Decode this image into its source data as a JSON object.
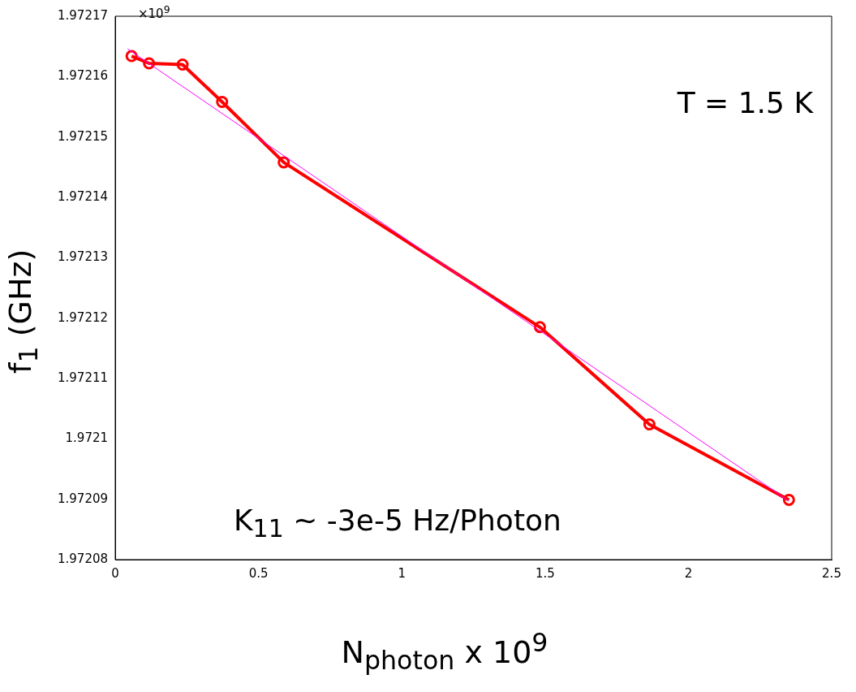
{
  "chart_data": {
    "type": "line",
    "xlabel": "N$_{photon}$ x 10$^{9}$",
    "ylabel": "f$_{1}$ (GHz)",
    "xlim": [
      0,
      2.5
    ],
    "xticks": [
      0,
      0.5,
      1,
      1.5,
      2,
      2.5
    ],
    "ylim": [
      1.97208,
      1.97217
    ],
    "yticks": [
      1.97208,
      1.97209,
      1.9721,
      1.97211,
      1.97212,
      1.97213,
      1.97214,
      1.97215,
      1.97216,
      1.97217
    ],
    "grid": false,
    "legend": false,
    "series": [
      {
        "color": "#ff0000",
        "marker": "circle",
        "line_style": "solid",
        "x": [
          0.057,
          0.118,
          0.235,
          0.373,
          0.588,
          1.482,
          1.864,
          2.351
        ],
        "values": [
          1.9721634,
          1.9721622,
          1.972162,
          1.9721558,
          1.9721458,
          1.9721185,
          1.9721024,
          1.9720899
        ]
      },
      {
        "color": "#ff00ff",
        "marker": "none",
        "line_style": "solid",
        "x": [
          0.043,
          2.351
        ],
        "values": [
          1.9721646,
          1.9720897
        ]
      }
    ],
    "annotations": [
      "×10$^{9}$",
      "T = 1.5 K",
      "K$_{11}$ ~ -3e-5 Hz/Photon"
    ]
  }
}
